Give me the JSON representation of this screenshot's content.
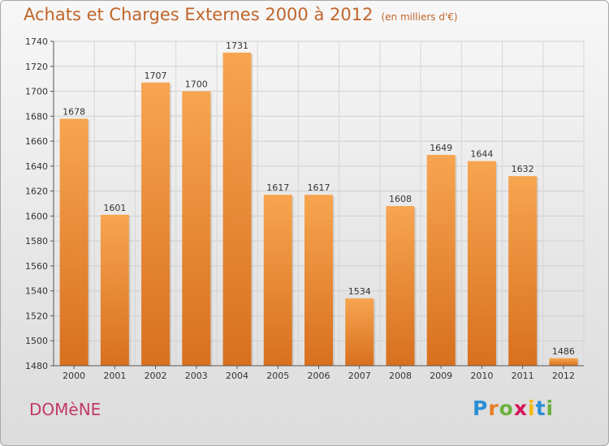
{
  "header": {
    "title": "Achats et Charges Externes 2000 à 2012",
    "unit": "(en milliers d'€)"
  },
  "footer": {
    "commune": "DOMèNE",
    "brand": {
      "letters": [
        "P",
        "r",
        "o",
        "x",
        "i",
        "t",
        "i"
      ],
      "colors": [
        "#2b8fd6",
        "#e97d22",
        "#6ab23e",
        "#d4145a",
        "#f5b800",
        "#2b8fd6",
        "#6ab23e"
      ]
    }
  },
  "chart_data": {
    "type": "bar",
    "categories": [
      "2000",
      "2001",
      "2002",
      "2003",
      "2004",
      "2005",
      "2006",
      "2007",
      "2008",
      "2009",
      "2010",
      "2011",
      "2012"
    ],
    "values": [
      1678,
      1601,
      1707,
      1700,
      1731,
      1617,
      1617,
      1534,
      1608,
      1649,
      1644,
      1632,
      1486
    ],
    "ylim": [
      1480,
      1740
    ],
    "yticks": [
      1480,
      1500,
      1520,
      1540,
      1560,
      1580,
      1600,
      1620,
      1640,
      1660,
      1680,
      1700,
      1720,
      1740
    ],
    "grid": true,
    "bar_color_top": "#f7a550",
    "bar_color_bottom": "#d8701e"
  }
}
